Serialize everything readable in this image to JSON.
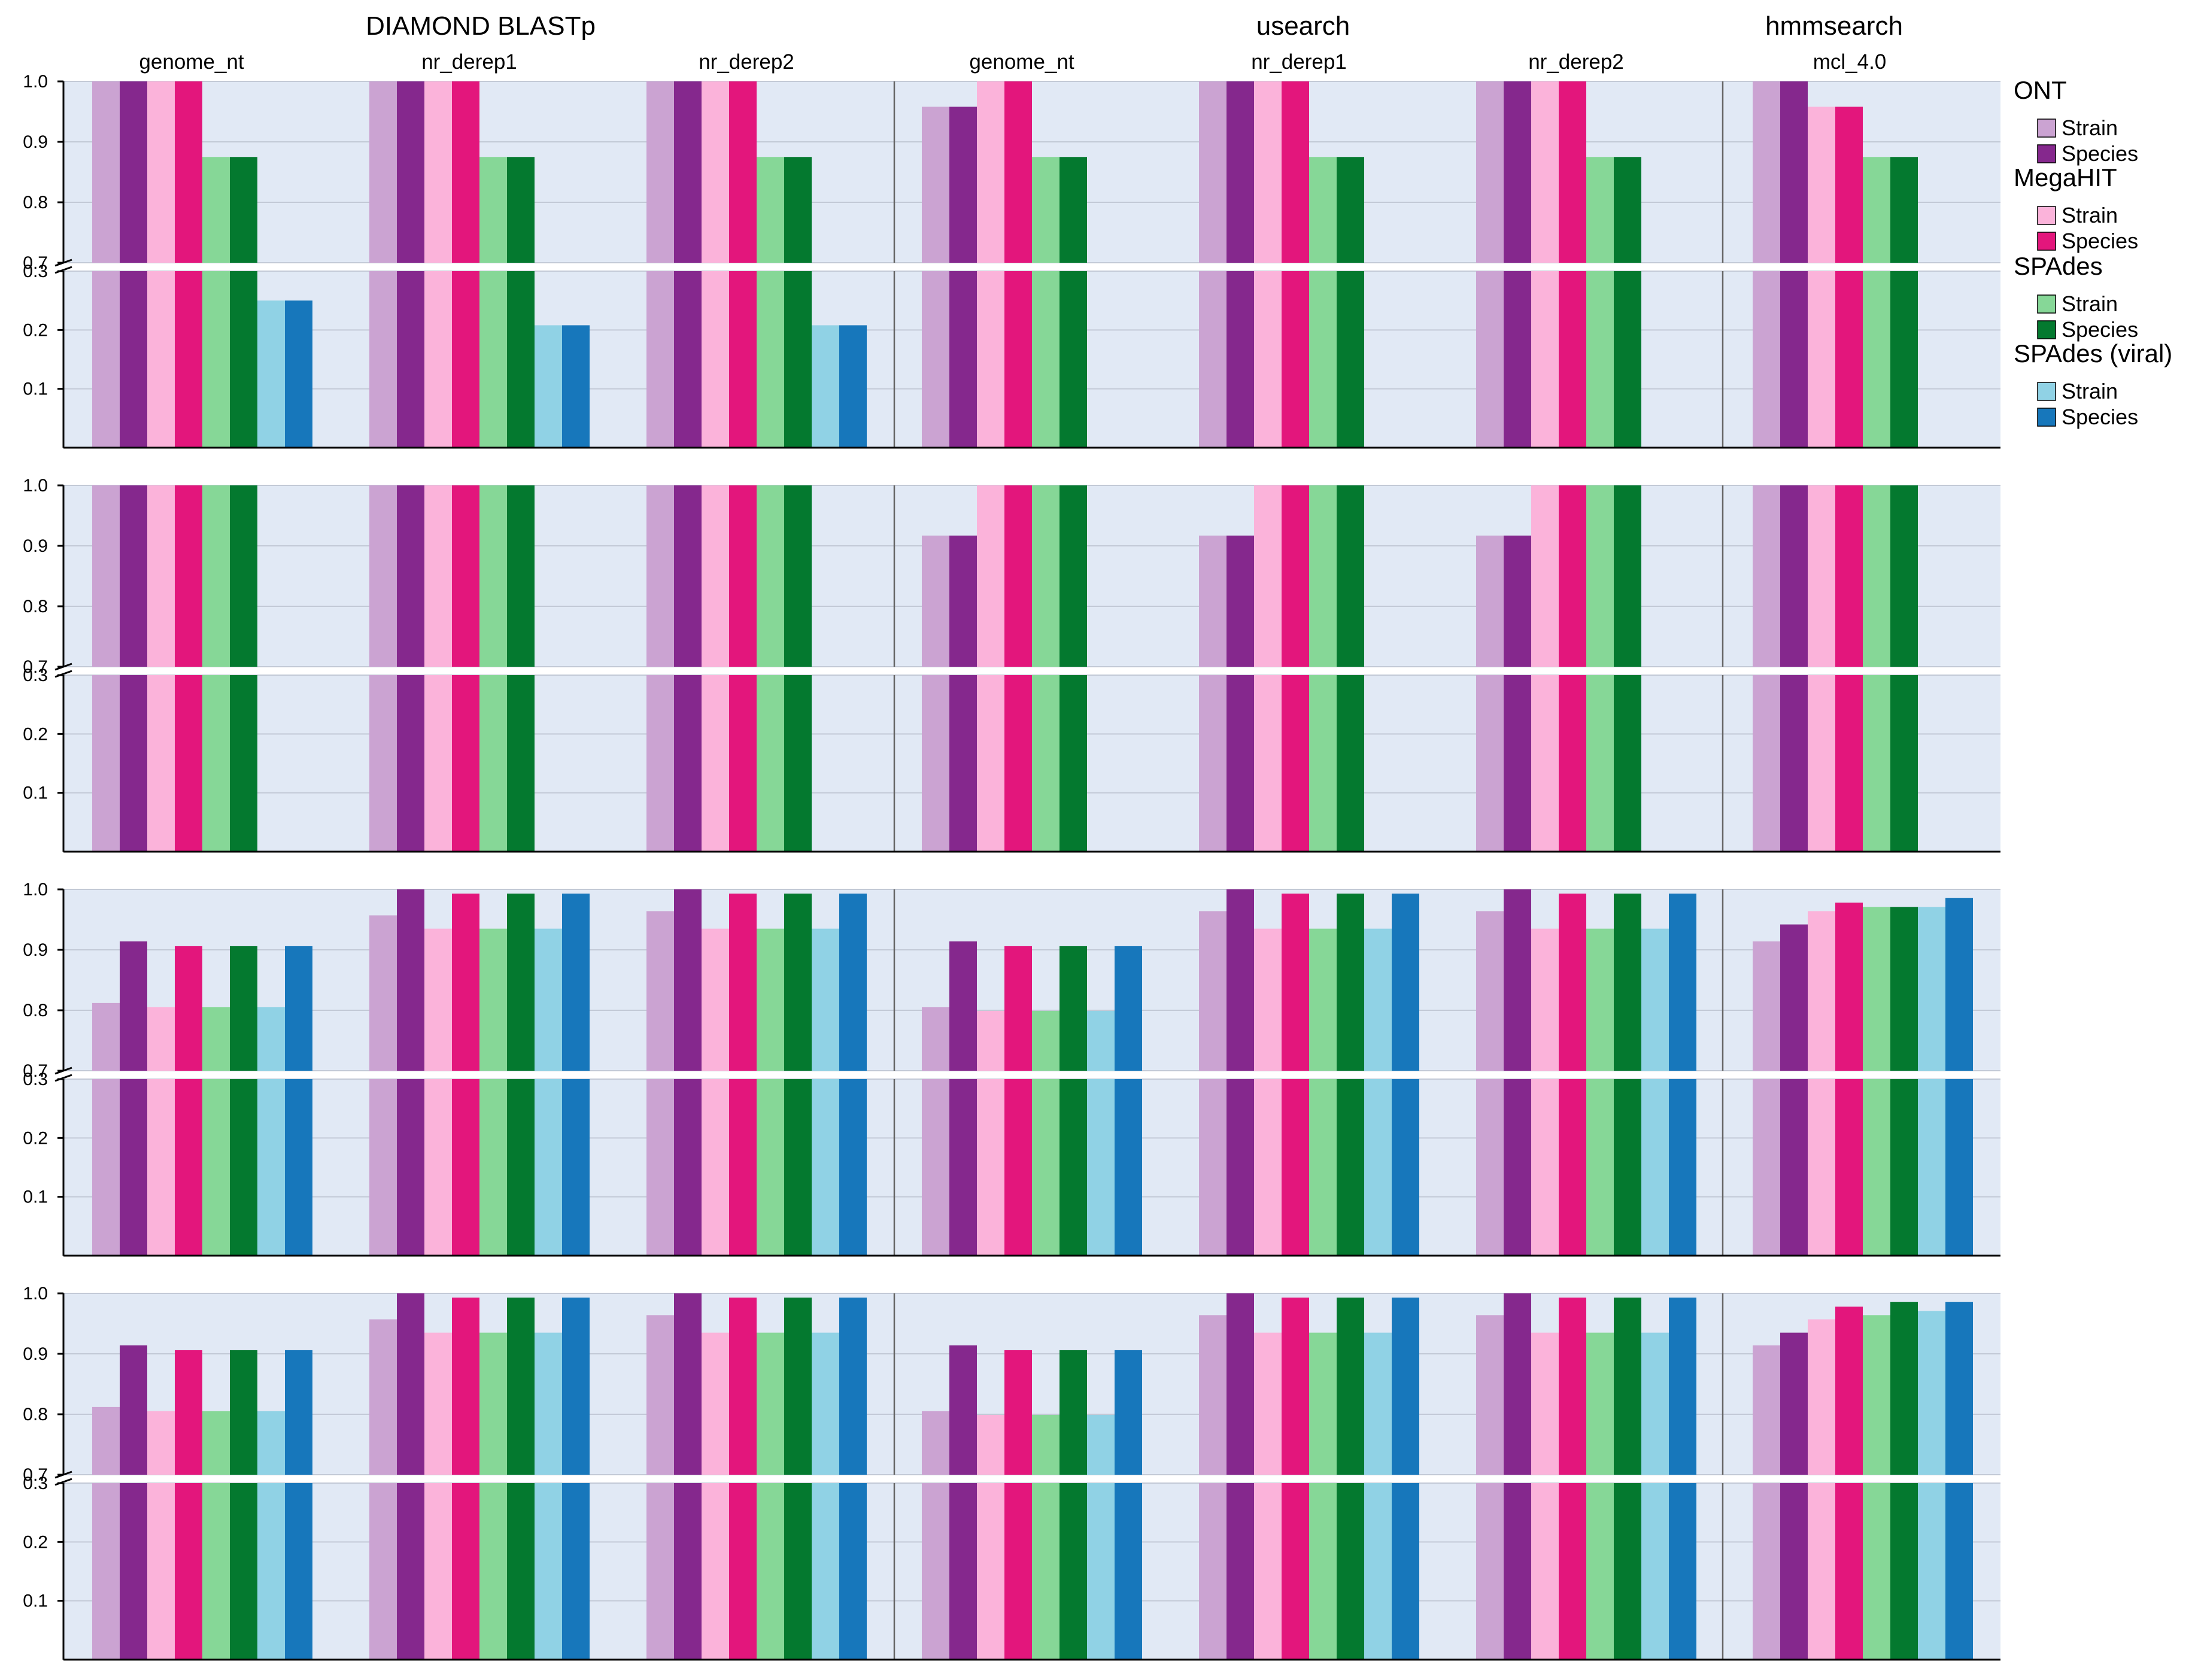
{
  "chart_data": {
    "type": "bar",
    "method_groups": [
      {
        "title": "DIAMOND BLASTp",
        "subgroups": [
          "genome_nt",
          "nr_derep1",
          "nr_derep2"
        ]
      },
      {
        "title": "usearch",
        "subgroups": [
          "genome_nt",
          "nr_derep1",
          "nr_derep2"
        ]
      },
      {
        "title": "hmmsearch",
        "subgroups": [
          "mcl_4.0"
        ]
      }
    ],
    "legend": [
      {
        "assembler": "ONT",
        "series": [
          {
            "label": "Strain",
            "color": "#cba3d2"
          },
          {
            "label": "Species",
            "color": "#85288d"
          }
        ]
      },
      {
        "assembler": "MegaHIT",
        "series": [
          {
            "label": "Strain",
            "color": "#fbb3da"
          },
          {
            "label": "Species",
            "color": "#e3167c"
          }
        ]
      },
      {
        "assembler": "SPAdes",
        "series": [
          {
            "label": "Strain",
            "color": "#86d797"
          },
          {
            "label": "Species",
            "color": "#04792f"
          }
        ]
      },
      {
        "assembler": "SPAdes (viral)",
        "series": [
          {
            "label": "Strain",
            "color": "#90d2e5"
          },
          {
            "label": "Species",
            "color": "#1777bb"
          }
        ]
      }
    ],
    "legend_placement": "right",
    "y_axis": {
      "broken": true,
      "upper_segment": {
        "range": [
          0.7,
          1.0
        ],
        "ticks": [
          "0.7",
          "0.8",
          "0.9",
          "1.0"
        ]
      },
      "lower_segment": {
        "range": [
          0,
          0.3
        ],
        "ticks": [
          "0.1",
          "0.2",
          "0.3"
        ]
      }
    },
    "grid": true,
    "series_order": [
      "ONT Strain",
      "ONT Species",
      "MegaHIT Strain",
      "MegaHIT Species",
      "SPAdes Strain",
      "SPAdes Species",
      "SPAdes (viral) Strain",
      "SPAdes (viral) Species"
    ],
    "rows": [
      {
        "values": [
          [
            1.0,
            1.0,
            1.0,
            1.0,
            0.875,
            0.875,
            0.25,
            0.25
          ],
          [
            1.0,
            1.0,
            1.0,
            1.0,
            0.875,
            0.875,
            0.208,
            0.208
          ],
          [
            1.0,
            1.0,
            1.0,
            1.0,
            0.875,
            0.875,
            0.208,
            0.208
          ],
          [
            0.958,
            0.958,
            1.0,
            1.0,
            0.875,
            0.875,
            null,
            null
          ],
          [
            1.0,
            1.0,
            1.0,
            1.0,
            0.875,
            0.875,
            null,
            null
          ],
          [
            1.0,
            1.0,
            1.0,
            1.0,
            0.875,
            0.875,
            null,
            null
          ],
          [
            1.0,
            1.0,
            0.958,
            0.958,
            0.875,
            0.875,
            null,
            null
          ]
        ]
      },
      {
        "values": [
          [
            1.0,
            1.0,
            1.0,
            1.0,
            1.0,
            1.0,
            null,
            null
          ],
          [
            1.0,
            1.0,
            1.0,
            1.0,
            1.0,
            1.0,
            null,
            null
          ],
          [
            1.0,
            1.0,
            1.0,
            1.0,
            1.0,
            1.0,
            null,
            null
          ],
          [
            0.917,
            0.917,
            1.0,
            1.0,
            1.0,
            1.0,
            null,
            null
          ],
          [
            0.917,
            0.917,
            1.0,
            1.0,
            1.0,
            1.0,
            null,
            null
          ],
          [
            0.917,
            0.917,
            1.0,
            1.0,
            1.0,
            1.0,
            null,
            null
          ],
          [
            1.0,
            1.0,
            1.0,
            1.0,
            1.0,
            1.0,
            null,
            null
          ]
        ]
      },
      {
        "values": [
          [
            0.812,
            0.914,
            0.805,
            0.906,
            0.805,
            0.906,
            0.805,
            0.906
          ],
          [
            0.957,
            1.0,
            0.935,
            0.993,
            0.935,
            0.993,
            0.935,
            0.993
          ],
          [
            0.964,
            1.0,
            0.935,
            0.993,
            0.935,
            0.993,
            0.935,
            0.993
          ],
          [
            0.805,
            0.914,
            0.799,
            0.906,
            0.799,
            0.906,
            0.799,
            0.906
          ],
          [
            0.964,
            1.0,
            0.935,
            0.993,
            0.935,
            0.993,
            0.935,
            0.993
          ],
          [
            0.964,
            1.0,
            0.935,
            0.993,
            0.935,
            0.993,
            0.935,
            0.993
          ],
          [
            0.914,
            0.942,
            0.964,
            0.978,
            0.971,
            0.971,
            0.971,
            0.986
          ]
        ]
      },
      {
        "values": [
          [
            0.812,
            0.914,
            0.805,
            0.906,
            0.805,
            0.906,
            0.805,
            0.906
          ],
          [
            0.957,
            1.0,
            0.935,
            0.993,
            0.935,
            0.993,
            0.935,
            0.993
          ],
          [
            0.964,
            1.0,
            0.935,
            0.993,
            0.935,
            0.993,
            0.935,
            0.993
          ],
          [
            0.805,
            0.914,
            0.799,
            0.906,
            0.799,
            0.906,
            0.799,
            0.906
          ],
          [
            0.964,
            1.0,
            0.935,
            0.993,
            0.935,
            0.993,
            0.935,
            0.993
          ],
          [
            0.964,
            1.0,
            0.935,
            0.993,
            0.935,
            0.993,
            0.935,
            0.993
          ],
          [
            0.914,
            0.935,
            0.957,
            0.978,
            0.964,
            0.986,
            0.971,
            0.986
          ]
        ]
      }
    ]
  }
}
